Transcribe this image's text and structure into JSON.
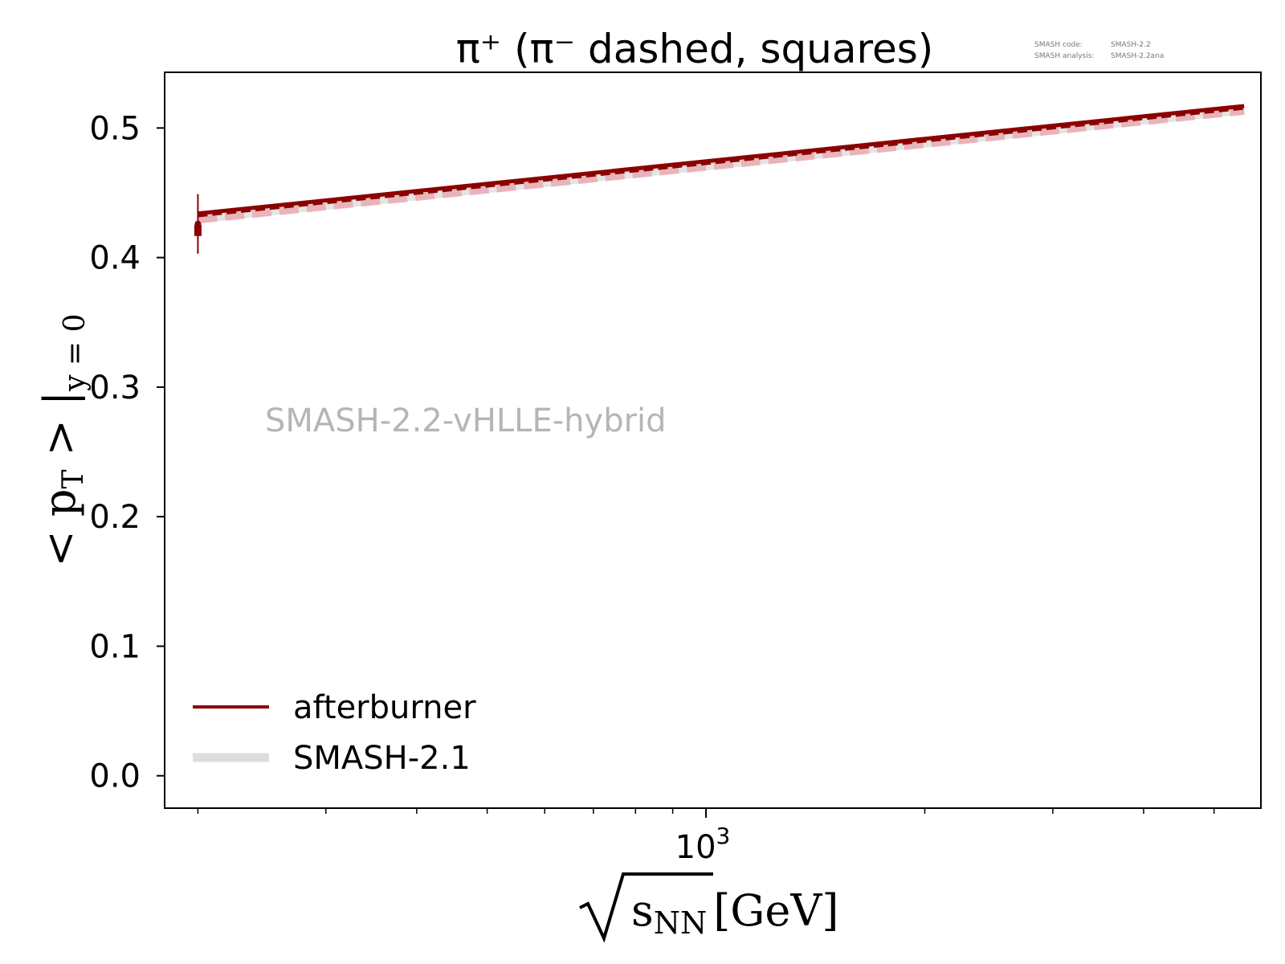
{
  "chart_data": {
    "type": "line",
    "title": "π⁺ (π⁻ dashed, squares)",
    "version_info": {
      "code_label": "SMASH code:",
      "code_value": "SMASH-2.2",
      "analysis_label": "SMASH analysis:",
      "analysis_value": "SMASH-2.2ana"
    },
    "watermark": "SMASH-2.2-vHLLE-hybrid",
    "xlabel": {
      "sqrt_arg": "s",
      "subscript": "NN",
      "unit": "[GeV]"
    },
    "ylabel": {
      "prefix": "< p",
      "p_subscript": "T",
      "middle": " > |",
      "subscript": "y = 0"
    },
    "x_scale": "log",
    "xlim": [
      180,
      5800
    ],
    "ylim": [
      -0.025,
      0.543
    ],
    "x_tick_label": {
      "base": "10",
      "exponent": "3"
    },
    "y_ticks": [
      "0.0",
      "0.1",
      "0.2",
      "0.3",
      "0.4",
      "0.5"
    ],
    "legend_position": "lower-left",
    "series": [
      {
        "name": "afterburner",
        "color": "#8b0000",
        "style": "solid",
        "x": [
          200,
          5500
        ],
        "y": [
          0.434,
          0.517
        ]
      },
      {
        "name": "SMASH-2.1",
        "color": "#dddddd",
        "style": "solid-thick",
        "x": [
          200,
          5500
        ],
        "y": [
          0.43,
          0.514
        ]
      },
      {
        "color": "#8b0000",
        "style": "dashed",
        "x": [
          200,
          5500
        ],
        "y": [
          0.432,
          0.515
        ]
      },
      {
        "color": "#e8a0a8",
        "style": "dashed-thick",
        "x": [
          200,
          5500
        ],
        "y": [
          0.429,
          0.513
        ]
      }
    ],
    "data_points": [
      {
        "x": 200,
        "y": 0.426,
        "yerr": 0.023,
        "marker": "circle",
        "color": "#8b0000"
      },
      {
        "x": 200,
        "y": 0.421,
        "yerr": 0.005,
        "marker": "square",
        "color": "#8b0000"
      }
    ]
  }
}
